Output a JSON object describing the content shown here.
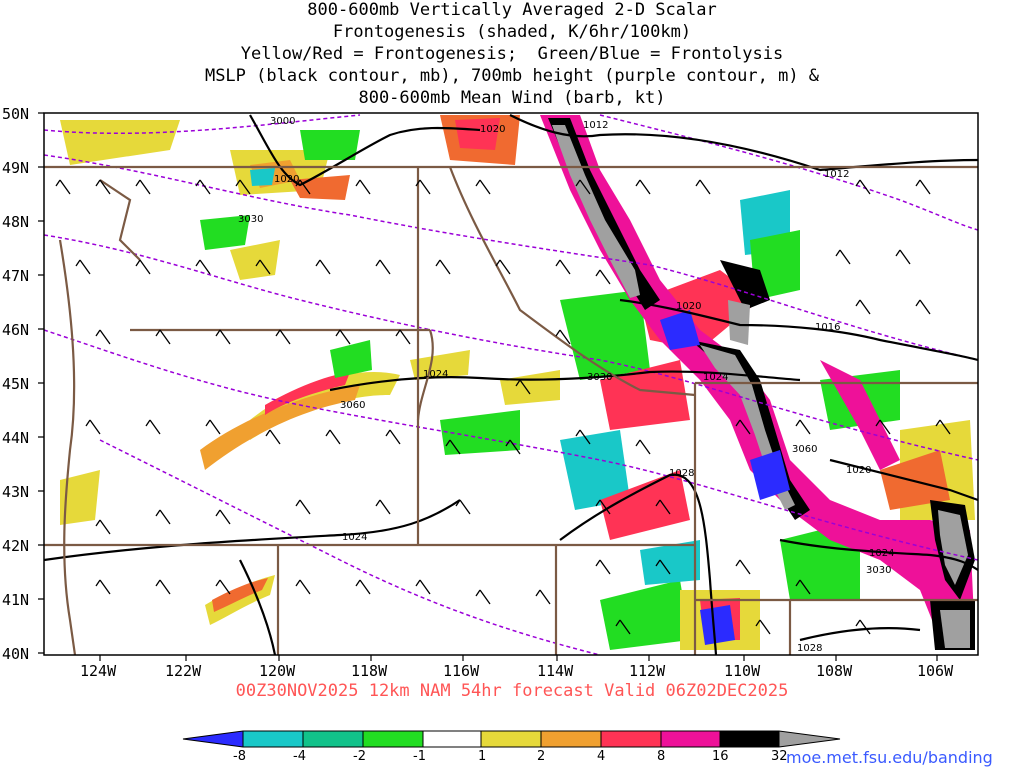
{
  "title": {
    "line1": "800-600mb Vertically Averaged 2-D Scalar",
    "line2": "Frontogenesis (shaded, K/6hr/100km)",
    "line3": "Yellow/Red = Frontogenesis;  Green/Blue = Frontolysis",
    "line4": "MSLP (black contour, mb), 700mb height (purple contour, m) &",
    "line5": "800-600mb Mean Wind (barb, kt)"
  },
  "latitude_labels": [
    "50N",
    "49N",
    "48N",
    "47N",
    "46N",
    "45N",
    "44N",
    "43N",
    "42N",
    "41N",
    "40N"
  ],
  "longitude_labels": [
    "124W",
    "122W",
    "120W",
    "118W",
    "116W",
    "114W",
    "112W",
    "110W",
    "108W",
    "106W"
  ],
  "contour_labels": {
    "mslp": [
      "1020",
      "1012",
      "1012",
      "1020",
      "1020",
      "1016",
      "1024",
      "1024",
      "1028",
      "1024",
      "1020",
      "1024",
      "1028"
    ],
    "height": [
      "3000",
      "3030",
      "3060",
      "3030",
      "3060",
      "3030"
    ]
  },
  "valid_line": "00Z30NOV2025 12km NAM 54hr forecast Valid 06Z02DEC2025",
  "colorbar": {
    "labels": [
      "-8",
      "-4",
      "-2",
      "-1",
      "1",
      "2",
      "4",
      "8",
      "16",
      "32"
    ],
    "colors": [
      "#2b2bff",
      "#19c8c8",
      "#11c28a",
      "#26b84a",
      "#22dd22",
      "#ffffff",
      "#e6d93a",
      "#f0a030",
      "#f06a30",
      "#ff3355",
      "#ee1199",
      "#000000",
      "#a0a0a0"
    ]
  },
  "credit": "moe.met.fsu.edu/banding",
  "colors": {
    "state_border": "#7b5a44",
    "mslp_contour": "#000000",
    "height_contour": "#9b00d8",
    "valid_text": "#ff5555"
  }
}
